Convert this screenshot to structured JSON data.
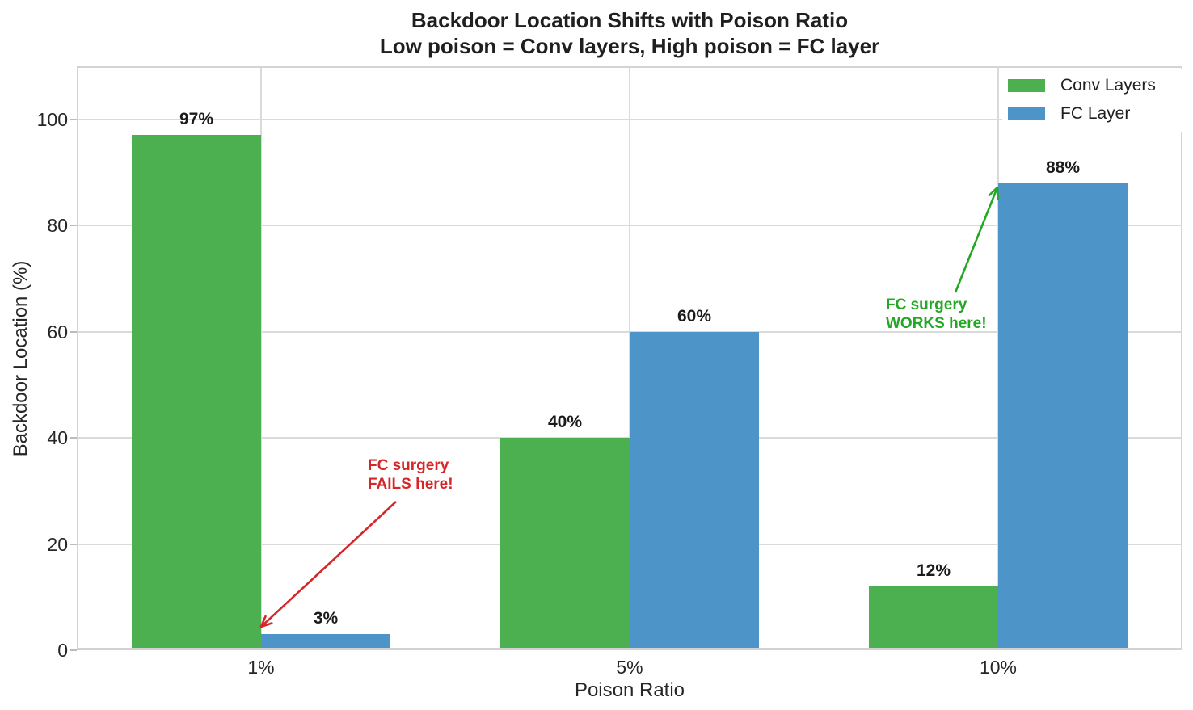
{
  "chart_data": {
    "type": "bar",
    "title": "Backdoor Location Shifts with Poison Ratio",
    "subtitle": "Low poison = Conv layers, High poison = FC layer",
    "xlabel": "Poison Ratio",
    "ylabel": "Backdoor Location (%)",
    "categories": [
      "1%",
      "5%",
      "10%"
    ],
    "series": [
      {
        "name": "Conv Layers",
        "color": "#4caf50",
        "values": [
          97,
          40,
          12
        ],
        "labels": [
          "97%",
          "40%",
          "12%"
        ]
      },
      {
        "name": "FC Layer",
        "color": "#4d94c8",
        "values": [
          3,
          60,
          88
        ],
        "labels": [
          "3%",
          "60%",
          "88%"
        ]
      }
    ],
    "ylim": [
      0,
      110
    ],
    "yticks": [
      0,
      20,
      40,
      60,
      80,
      100
    ],
    "grid": true,
    "grid_color": "#dadada",
    "legend_position": "upper right",
    "annotations": [
      {
        "text": "FC surgery\nFAILS here!",
        "color": "#d62728",
        "target": "FC Layer bar at 1% poison (3%)"
      },
      {
        "text": "FC surgery\nWORKS here!",
        "color": "#22a822",
        "target": "FC Layer bar at 10% poison (88%)"
      }
    ]
  }
}
